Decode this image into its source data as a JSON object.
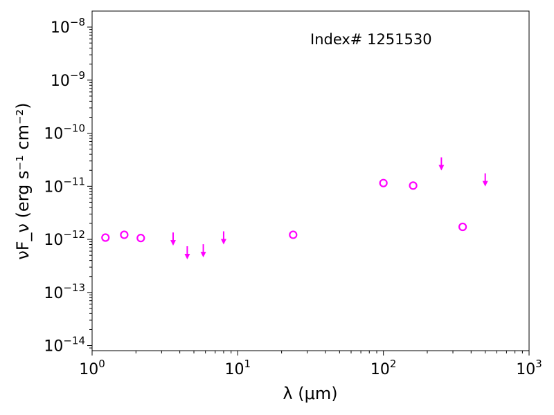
{
  "chart_data": {
    "type": "scatter",
    "annotation": "Index# 1251530",
    "xlabel": "λ (μm)",
    "ylabel": "νF_ν (erg s⁻¹ cm⁻²)",
    "x_scale": "log",
    "y_scale": "log",
    "xlim": [
      1,
      1000
    ],
    "ylim": [
      8e-15,
      2e-08
    ],
    "x_ticks": [
      {
        "value": 1,
        "base": "10",
        "exp": "0"
      },
      {
        "value": 10,
        "base": "10",
        "exp": "1"
      },
      {
        "value": 100,
        "base": "10",
        "exp": "2"
      },
      {
        "value": 1000,
        "base": "10",
        "exp": "3"
      }
    ],
    "y_ticks": [
      {
        "value": 1e-14,
        "base": "10",
        "exp": "−14"
      },
      {
        "value": 1e-13,
        "base": "10",
        "exp": "−13"
      },
      {
        "value": 1e-12,
        "base": "10",
        "exp": "−12"
      },
      {
        "value": 1e-11,
        "base": "10",
        "exp": "−11"
      },
      {
        "value": 1e-10,
        "base": "10",
        "exp": "−10"
      },
      {
        "value": 1e-09,
        "base": "10",
        "exp": "−9"
      },
      {
        "value": 1e-08,
        "base": "10",
        "exp": "−8"
      }
    ],
    "grid": false,
    "legend": "none",
    "marker_color": "#ff00ff",
    "detections": [
      {
        "x": 1.235,
        "y": 1.08e-12
      },
      {
        "x": 1.662,
        "y": 1.22e-12
      },
      {
        "x": 2.159,
        "y": 1.06e-12
      },
      {
        "x": 24.0,
        "y": 1.22e-12
      },
      {
        "x": 100.0,
        "y": 1.15e-11
      },
      {
        "x": 160.0,
        "y": 1.03e-11
      },
      {
        "x": 350.0,
        "y": 1.72e-12
      }
    ],
    "upper_limits": [
      {
        "x": 3.6,
        "y": 1e-12
      },
      {
        "x": 4.5,
        "y": 5.5e-13
      },
      {
        "x": 5.8,
        "y": 6e-13
      },
      {
        "x": 8.0,
        "y": 1.05e-12
      },
      {
        "x": 250.0,
        "y": 2.6e-11
      },
      {
        "x": 500.0,
        "y": 1.3e-11
      }
    ]
  }
}
